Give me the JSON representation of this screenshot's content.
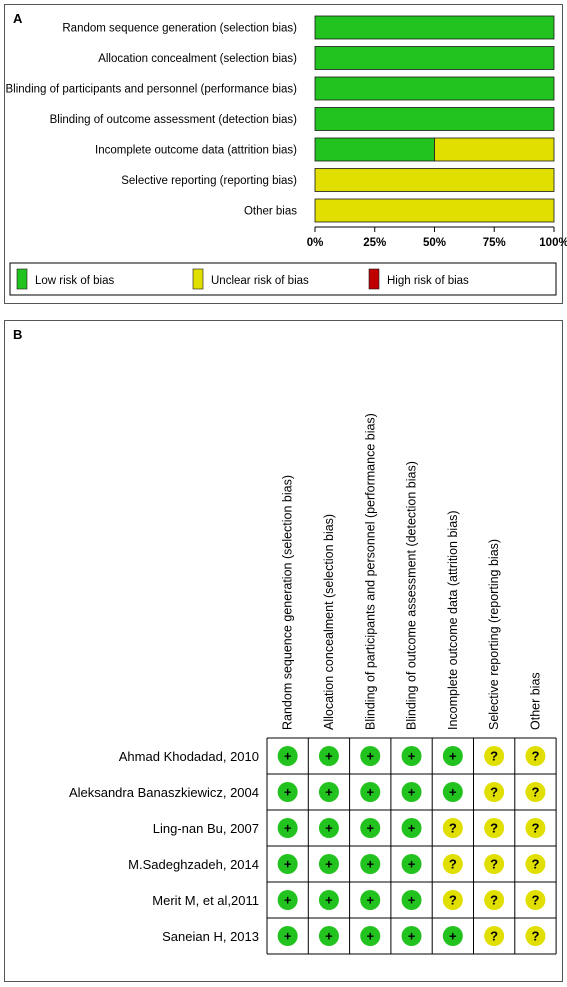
{
  "colors": {
    "low": "#22c21f",
    "unclear": "#e0df00",
    "high": "#c00000"
  },
  "panel_a": {
    "label": "A",
    "legend": [
      "Low risk of bias",
      "Unclear risk of bias",
      "High risk of bias"
    ]
  },
  "panel_b": {
    "label": "B"
  },
  "symbols": {
    "low": "+",
    "unclear": "?"
  },
  "chart_data": [
    {
      "type": "bar",
      "orientation": "horizontal",
      "stacked": true,
      "categories": [
        "Random sequence generation (selection bias)",
        "Allocation concealment (selection bias)",
        "Blinding of participants and personnel (performance bias)",
        "Blinding of outcome assessment (detection bias)",
        "Incomplete outcome data (attrition bias)",
        "Selective reporting (reporting bias)",
        "Other bias"
      ],
      "series": [
        {
          "name": "Low risk of bias",
          "values": [
            100,
            100,
            100,
            100,
            50,
            0,
            0
          ]
        },
        {
          "name": "Unclear risk of bias",
          "values": [
            0,
            0,
            0,
            0,
            50,
            100,
            100
          ]
        },
        {
          "name": "High risk of bias",
          "values": [
            0,
            0,
            0,
            0,
            0,
            0,
            0
          ]
        }
      ],
      "xticks": [
        "0%",
        "25%",
        "50%",
        "75%",
        "100%"
      ],
      "xlim": [
        0,
        100
      ],
      "legend_position": "bottom"
    },
    {
      "type": "table",
      "columns": [
        "Random sequence generation (selection bias)",
        "Allocation concealment (selection bias)",
        "Blinding of participants and personnel (performance bias)",
        "Blinding of outcome assessment (detection bias)",
        "Incomplete outcome data (attrition bias)",
        "Selective reporting (reporting bias)",
        "Other bias"
      ],
      "rows": [
        {
          "study": "Ahmad Khodadad, 2010",
          "ratings": [
            "low",
            "low",
            "low",
            "low",
            "low",
            "unclear",
            "unclear"
          ]
        },
        {
          "study": "Aleksandra Banaszkiewicz, 2004",
          "ratings": [
            "low",
            "low",
            "low",
            "low",
            "low",
            "unclear",
            "unclear"
          ]
        },
        {
          "study": "Ling-nan Bu, 2007",
          "ratings": [
            "low",
            "low",
            "low",
            "low",
            "unclear",
            "unclear",
            "unclear"
          ]
        },
        {
          "study": "M.Sadeghzadeh, 2014",
          "ratings": [
            "low",
            "low",
            "low",
            "low",
            "unclear",
            "unclear",
            "unclear"
          ]
        },
        {
          "study": "Merit M, et al,2011",
          "ratings": [
            "low",
            "low",
            "low",
            "low",
            "unclear",
            "unclear",
            "unclear"
          ]
        },
        {
          "study": "Saneian H, 2013",
          "ratings": [
            "low",
            "low",
            "low",
            "low",
            "low",
            "unclear",
            "unclear"
          ]
        }
      ]
    }
  ]
}
